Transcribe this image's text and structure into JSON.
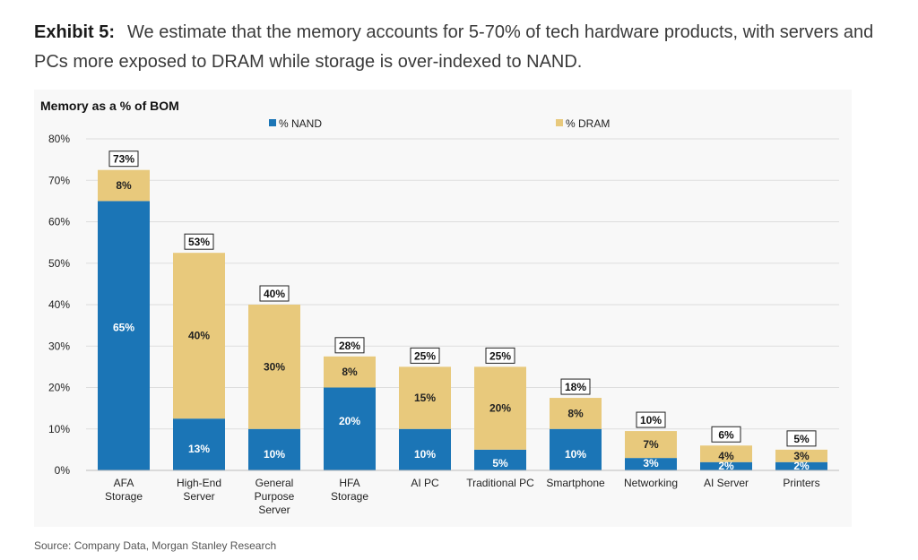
{
  "exhibit": {
    "label": "Exhibit 5:",
    "text": "We estimate that the memory accounts for 5-70% of tech hardware products, with servers and PCs more exposed to DRAM while storage is over-indexed to NAND."
  },
  "source": "Source: Company Data, Morgan Stanley Research",
  "colors": {
    "nand": "#1b75b6",
    "dram": "#e8c97c",
    "grid": "#dddddd"
  },
  "chart_data": {
    "type": "bar",
    "stacked": true,
    "title": "Memory as a % of BOM",
    "ylim": [
      0,
      80
    ],
    "yticks": [
      "0%",
      "10%",
      "20%",
      "30%",
      "40%",
      "50%",
      "60%",
      "70%",
      "80%"
    ],
    "grid": true,
    "legend_position": "top",
    "categories": [
      [
        "AFA",
        "Storage"
      ],
      [
        "High-End",
        "Server"
      ],
      [
        "General",
        "Purpose",
        "Server"
      ],
      [
        "HFA",
        "Storage"
      ],
      [
        "AI PC"
      ],
      [
        "Traditional PC"
      ],
      [
        "Smartphone"
      ],
      [
        "Networking"
      ],
      [
        "AI Server"
      ],
      [
        "Printers"
      ]
    ],
    "series": [
      {
        "name": "% NAND",
        "color": "#1b75b6",
        "values": [
          65,
          12.5,
          10,
          20,
          10,
          5,
          10,
          3,
          2,
          2
        ],
        "labels": [
          "65%",
          "13%",
          "10%",
          "20%",
          "10%",
          "5%",
          "10%",
          "3%",
          "2%",
          "2%"
        ]
      },
      {
        "name": "% DRAM",
        "color": "#e8c97c",
        "values": [
          7.5,
          40,
          30,
          7.5,
          15,
          20,
          7.5,
          6.5,
          4,
          3
        ],
        "labels": [
          "8%",
          "40%",
          "30%",
          "8%",
          "15%",
          "20%",
          "8%",
          "7%",
          "4%",
          "3%"
        ]
      }
    ],
    "totals": [
      "73%",
      "53%",
      "40%",
      "28%",
      "25%",
      "25%",
      "18%",
      "10%",
      "6%",
      "5%"
    ]
  }
}
